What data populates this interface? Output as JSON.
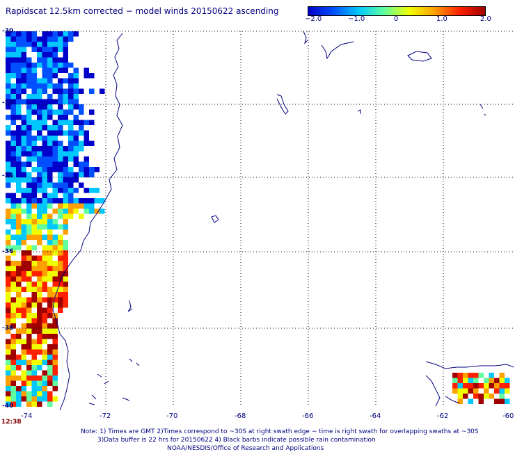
{
  "title": "Rapidscat 12.5km corrected − model winds 20150622 ascending",
  "colorbar": {
    "labels": [
      "−2.0",
      "−1.0",
      "0",
      "1.0",
      "2.0"
    ],
    "values": [
      -2.0,
      -1.0,
      0,
      1.0,
      2.0
    ],
    "colors": [
      "#0000c8",
      "#0050ff",
      "#00c8ff",
      "#60ffa0",
      "#f0ff00",
      "#ffa000",
      "#ff2000",
      "#a00000"
    ]
  },
  "axes": {
    "lon_labels": [
      "-74",
      "-72",
      "-70",
      "-68",
      "-66",
      "-64",
      "-62",
      "-60"
    ],
    "lat_labels": [
      "-30",
      "-32",
      "-34",
      "-36",
      "-38",
      "-40"
    ],
    "lon_range": [
      -74.4,
      -60
    ],
    "lat_range": [
      -30,
      -40
    ]
  },
  "time_label": "12:38",
  "notes": {
    "line1": "Note: 1) Times are GMT 2)Times correspond to ~30S at right swath edge − time is right swath for overlapping swaths at ~30S",
    "line2": "3)Data buffer is 22 hrs for 20150622 4) Black barbs indicate possible rain contamination",
    "line3": "NOAA/NESDIS/Office of Research and Applications"
  }
}
